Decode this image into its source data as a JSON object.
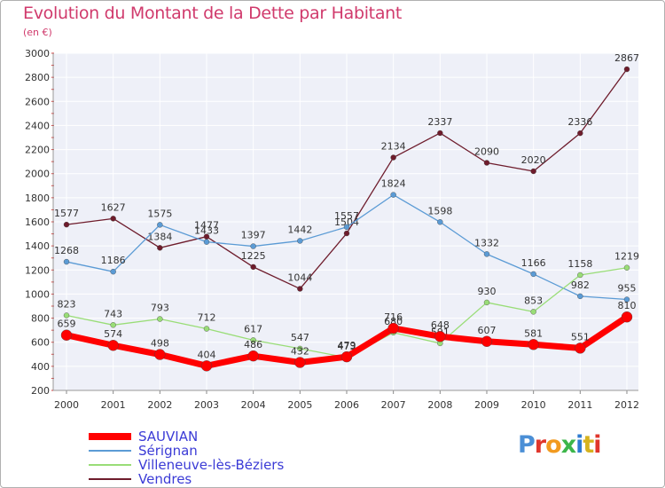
{
  "title": "Evolution du Montant de la Dette par Habitant",
  "subtitle": "(en €)",
  "brand": [
    "P",
    "r",
    "o",
    "x",
    "i",
    "t",
    "i"
  ],
  "chart_data": {
    "type": "line",
    "categories": [
      "2000",
      "2001",
      "2002",
      "2003",
      "2004",
      "2005",
      "2006",
      "2007",
      "2008",
      "2009",
      "2010",
      "2011",
      "2012"
    ],
    "ylim": [
      200,
      3000
    ],
    "yticks": [
      "200",
      "400",
      "600",
      "800",
      "1000",
      "1200",
      "1400",
      "1600",
      "1800",
      "2000",
      "2200",
      "2400",
      "2600",
      "2800",
      "3000"
    ],
    "grid": true,
    "legend_position": "bottom-left",
    "series": [
      {
        "name": "Vendres",
        "color": "#6e1c2c",
        "width": 1.3,
        "point": 3,
        "values": [
          1577,
          1627,
          1384,
          1477,
          1225,
          1044,
          1504,
          2134,
          2337,
          2090,
          2020,
          2336,
          2867
        ],
        "labels": [
          "1577",
          "1627",
          "1384",
          "1477",
          "1225",
          "1044",
          "1504",
          "2134",
          "2337",
          "2090",
          "2020",
          "2336",
          "2867"
        ]
      },
      {
        "name": "Sérignan",
        "color": "#5b9bd5",
        "width": 1.3,
        "point": 3,
        "values": [
          1268,
          1186,
          1575,
          1433,
          1397,
          1442,
          1557,
          1824,
          1598,
          1332,
          1166,
          982,
          955
        ],
        "labels": [
          "1268",
          "1186",
          "1575",
          "1433",
          "1397",
          "1442",
          "1557",
          "1824",
          "1598",
          "1332",
          "1166",
          "982",
          "955"
        ]
      },
      {
        "name": "Villeneuve-lès-Béziers",
        "color": "#99dd77",
        "width": 1.3,
        "point": 3,
        "values": [
          823,
          743,
          793,
          712,
          617,
          547,
          473,
          680,
          591,
          930,
          853,
          1158,
          1219
        ],
        "labels": [
          "823",
          "743",
          "793",
          "712",
          "617",
          "547",
          "473",
          "680",
          "591",
          "930",
          "853",
          "1158",
          "1219"
        ]
      },
      {
        "name": "SAUVIAN",
        "color": "#ff0000",
        "width": 7,
        "point": 6,
        "values": [
          659,
          574,
          498,
          404,
          486,
          432,
          479,
          716,
          648,
          607,
          581,
          551,
          810
        ],
        "labels": [
          "659",
          "574",
          "498",
          "404",
          "486",
          "432",
          "479",
          "716",
          "648",
          "607",
          "581",
          "551",
          "810"
        ]
      }
    ],
    "legend_order": [
      "SAUVIAN",
      "Sérignan",
      "Villeneuve-lès-Béziers",
      "Vendres"
    ]
  }
}
